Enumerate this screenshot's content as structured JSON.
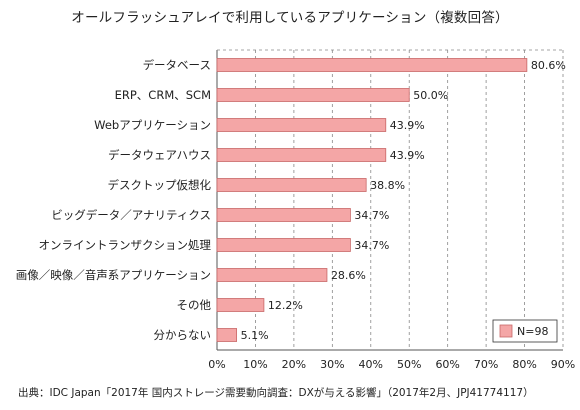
{
  "chart_data": {
    "type": "bar",
    "orientation": "horizontal",
    "title": "オールフラッシュアレイで利用しているアプリケーション（複数回答）",
    "categories": [
      "データベース",
      "ERP、CRM、SCM",
      "Webアプリケーション",
      "データウェアハウス",
      "デスクトップ仮想化",
      "ビッグデータ／アナリティクス",
      "オンライントランザクション処理",
      "画像／映像／音声系アプリケーション",
      "その他",
      "分からない"
    ],
    "values": [
      80.6,
      50.0,
      43.9,
      43.9,
      38.8,
      34.7,
      34.7,
      28.6,
      12.2,
      5.1
    ],
    "value_labels": [
      "80.6%",
      "50.0%",
      "43.9%",
      "43.9%",
      "38.8%",
      "34.7%",
      "34.7%",
      "28.6%",
      "12.2%",
      "5.1%"
    ],
    "xlim": [
      0,
      90
    ],
    "x_ticks": [
      0,
      10,
      20,
      30,
      40,
      50,
      60,
      70,
      80,
      90
    ],
    "x_tick_labels": [
      "0%",
      "10%",
      "20%",
      "30%",
      "40%",
      "50%",
      "60%",
      "70%",
      "80%",
      "90%"
    ],
    "grid": "vertical-dashed",
    "legend": {
      "label": "N=98",
      "placement": "bottom-right"
    },
    "colors": {
      "bar_fill": "#f4a6a6",
      "bar_stroke": "#c96868",
      "grid": "#888888",
      "axis": "#555555"
    },
    "source": "出典：IDC Japan「2017年 国内ストレージ需要動向調査：DXが与える影響」（2017年2月、JPJ41774117）"
  }
}
